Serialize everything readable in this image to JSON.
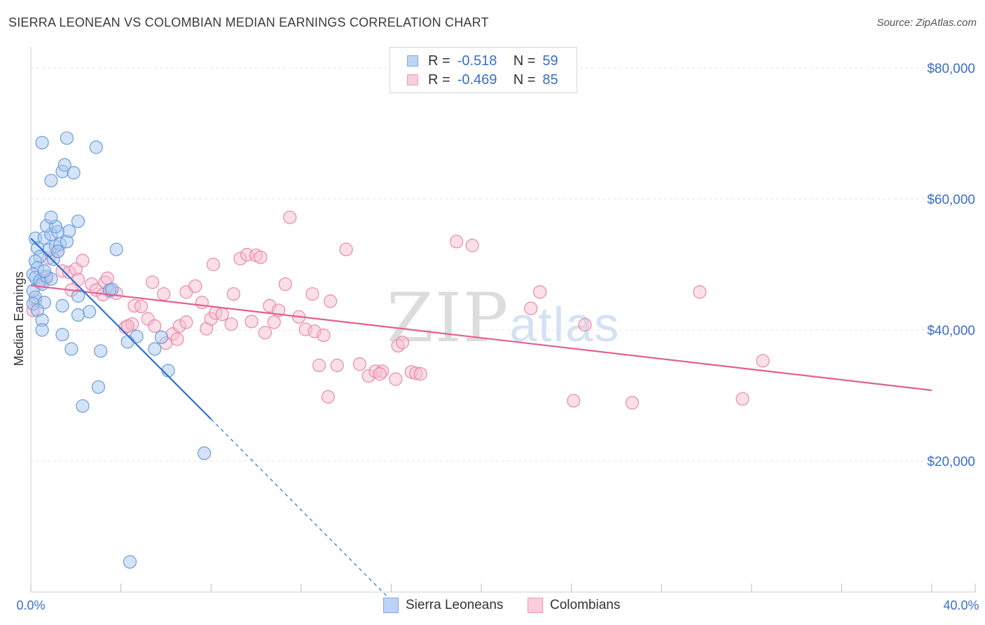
{
  "title": "SIERRA LEONEAN VS COLOMBIAN MEDIAN EARNINGS CORRELATION CHART",
  "source": "Source: ZipAtlas.com",
  "watermark": {
    "zip": "ZIP",
    "atlas": "atlas"
  },
  "legend": {
    "r_label": "R =",
    "n_label": "N =",
    "rows": [
      {
        "name": "Sierra Leoneans",
        "r": "-0.518",
        "n": "59"
      },
      {
        "name": "Colombians",
        "r": "-0.469",
        "n": "85"
      }
    ]
  },
  "colors": {
    "blue_fill": "#a9c8ef",
    "blue_stroke": "#6a9ed8",
    "blue_line": "#2b6fd0",
    "pink_fill": "#f6bfd2",
    "pink_stroke": "#e889a9",
    "pink_line": "#e35f8e",
    "grid": "#e3e3e3",
    "axis_label": "#3a6fc4"
  },
  "chart_data": {
    "type": "scatter",
    "title": "SIERRA LEONEAN VS COLOMBIAN MEDIAN EARNINGS CORRELATION CHART",
    "xlabel": "",
    "ylabel": "Median Earnings",
    "xlim": [
      0,
      40
    ],
    "ylim": [
      0,
      80000
    ],
    "x_tick_labels": [
      "0.0%",
      "40.0%"
    ],
    "y_ticks": [
      20000,
      40000,
      60000,
      80000
    ],
    "y_tick_labels": [
      "$20,000",
      "$40,000",
      "$60,000",
      "$80,000"
    ],
    "series": [
      {
        "name": "Sierra Leoneans",
        "color": "#a9c8ef",
        "trend": {
          "x": [
            0,
            8
          ],
          "y": [
            54000,
            26400
          ],
          "dashed_to": [
            16,
            -1300
          ]
        },
        "points": [
          [
            0.2,
            54000
          ],
          [
            0.3,
            52500
          ],
          [
            0.4,
            51200
          ],
          [
            0.2,
            50500
          ],
          [
            0.3,
            49500
          ],
          [
            0.1,
            48500
          ],
          [
            0.2,
            48000
          ],
          [
            0.4,
            47500
          ],
          [
            0.5,
            47000
          ],
          [
            0.1,
            46000
          ],
          [
            0.2,
            45000
          ],
          [
            0.1,
            44000
          ],
          [
            0.6,
            44200
          ],
          [
            0.3,
            43000
          ],
          [
            0.5,
            41500
          ],
          [
            0.5,
            40000
          ],
          [
            0.7,
            48200
          ],
          [
            0.9,
            47800
          ],
          [
            0.6,
            49000
          ],
          [
            1.0,
            50800
          ],
          [
            0.8,
            52200
          ],
          [
            1.1,
            52800
          ],
          [
            1.3,
            53100
          ],
          [
            1.6,
            53500
          ],
          [
            0.6,
            54100
          ],
          [
            0.9,
            54600
          ],
          [
            1.2,
            55000
          ],
          [
            0.7,
            55900
          ],
          [
            1.1,
            55800
          ],
          [
            1.7,
            55100
          ],
          [
            0.9,
            57200
          ],
          [
            2.1,
            56600
          ],
          [
            0.9,
            62800
          ],
          [
            1.4,
            64200
          ],
          [
            1.9,
            64000
          ],
          [
            1.5,
            65200
          ],
          [
            0.5,
            68600
          ],
          [
            1.6,
            69300
          ],
          [
            2.9,
            67900
          ],
          [
            1.2,
            52000
          ],
          [
            3.8,
            52300
          ],
          [
            2.1,
            45200
          ],
          [
            2.6,
            42800
          ],
          [
            2.1,
            42300
          ],
          [
            1.4,
            43700
          ],
          [
            1.4,
            39300
          ],
          [
            1.8,
            37100
          ],
          [
            3.1,
            36800
          ],
          [
            3.0,
            31300
          ],
          [
            2.3,
            28400
          ],
          [
            3.5,
            46100
          ],
          [
            3.6,
            46200
          ],
          [
            4.7,
            39000
          ],
          [
            4.3,
            38200
          ],
          [
            5.8,
            38900
          ],
          [
            5.5,
            37100
          ],
          [
            6.1,
            33800
          ],
          [
            7.7,
            21200
          ],
          [
            4.4,
            4600
          ]
        ]
      },
      {
        "name": "Colombians",
        "color": "#f6bfd2",
        "trend": {
          "x": [
            0,
            40
          ],
          "y": [
            46800,
            30800
          ]
        },
        "points": [
          [
            0.2,
            44500
          ],
          [
            0.4,
            47200
          ],
          [
            0.7,
            48000
          ],
          [
            0.8,
            51000
          ],
          [
            1.2,
            52000
          ],
          [
            1.4,
            49000
          ],
          [
            1.7,
            48800
          ],
          [
            2.0,
            49300
          ],
          [
            2.3,
            50600
          ],
          [
            2.1,
            47700
          ],
          [
            1.8,
            46100
          ],
          [
            2.7,
            47000
          ],
          [
            2.9,
            46100
          ],
          [
            3.3,
            47300
          ],
          [
            3.5,
            45900
          ],
          [
            3.2,
            45400
          ],
          [
            3.8,
            45600
          ],
          [
            3.4,
            47900
          ],
          [
            4.2,
            40400
          ],
          [
            4.5,
            40900
          ],
          [
            4.3,
            40600
          ],
          [
            4.6,
            43700
          ],
          [
            4.9,
            43600
          ],
          [
            5.2,
            41700
          ],
          [
            5.5,
            40600
          ],
          [
            5.9,
            45500
          ],
          [
            5.4,
            47300
          ],
          [
            6.0,
            38000
          ],
          [
            6.3,
            39400
          ],
          [
            6.5,
            38600
          ],
          [
            6.6,
            40600
          ],
          [
            6.9,
            41200
          ],
          [
            6.9,
            45800
          ],
          [
            7.3,
            46700
          ],
          [
            7.6,
            44200
          ],
          [
            7.8,
            40200
          ],
          [
            8.0,
            41700
          ],
          [
            8.2,
            42600
          ],
          [
            8.5,
            42400
          ],
          [
            8.1,
            50000
          ],
          [
            8.9,
            40900
          ],
          [
            9.0,
            45500
          ],
          [
            9.3,
            50900
          ],
          [
            9.6,
            51500
          ],
          [
            10.0,
            51400
          ],
          [
            10.2,
            51100
          ],
          [
            9.8,
            41300
          ],
          [
            10.4,
            39600
          ],
          [
            10.6,
            43700
          ],
          [
            11.0,
            43000
          ],
          [
            10.8,
            41200
          ],
          [
            11.3,
            47000
          ],
          [
            11.5,
            57200
          ],
          [
            11.9,
            42000
          ],
          [
            12.2,
            40100
          ],
          [
            12.6,
            39800
          ],
          [
            12.5,
            45500
          ],
          [
            13.0,
            39200
          ],
          [
            12.8,
            34600
          ],
          [
            13.3,
            44400
          ],
          [
            13.6,
            34600
          ],
          [
            13.2,
            29800
          ],
          [
            14.0,
            52300
          ],
          [
            14.6,
            34800
          ],
          [
            15.0,
            33000
          ],
          [
            15.3,
            33700
          ],
          [
            15.6,
            33700
          ],
          [
            15.5,
            33300
          ],
          [
            16.2,
            32500
          ],
          [
            16.3,
            37600
          ],
          [
            16.5,
            38100
          ],
          [
            16.9,
            33600
          ],
          [
            17.1,
            33400
          ],
          [
            17.3,
            33300
          ],
          [
            18.9,
            53500
          ],
          [
            19.6,
            52900
          ],
          [
            22.2,
            43300
          ],
          [
            22.6,
            45800
          ],
          [
            24.1,
            29200
          ],
          [
            24.6,
            40800
          ],
          [
            26.7,
            28900
          ],
          [
            29.7,
            45800
          ],
          [
            31.6,
            29500
          ],
          [
            32.5,
            35300
          ],
          [
            0.1,
            43000
          ]
        ]
      }
    ]
  }
}
